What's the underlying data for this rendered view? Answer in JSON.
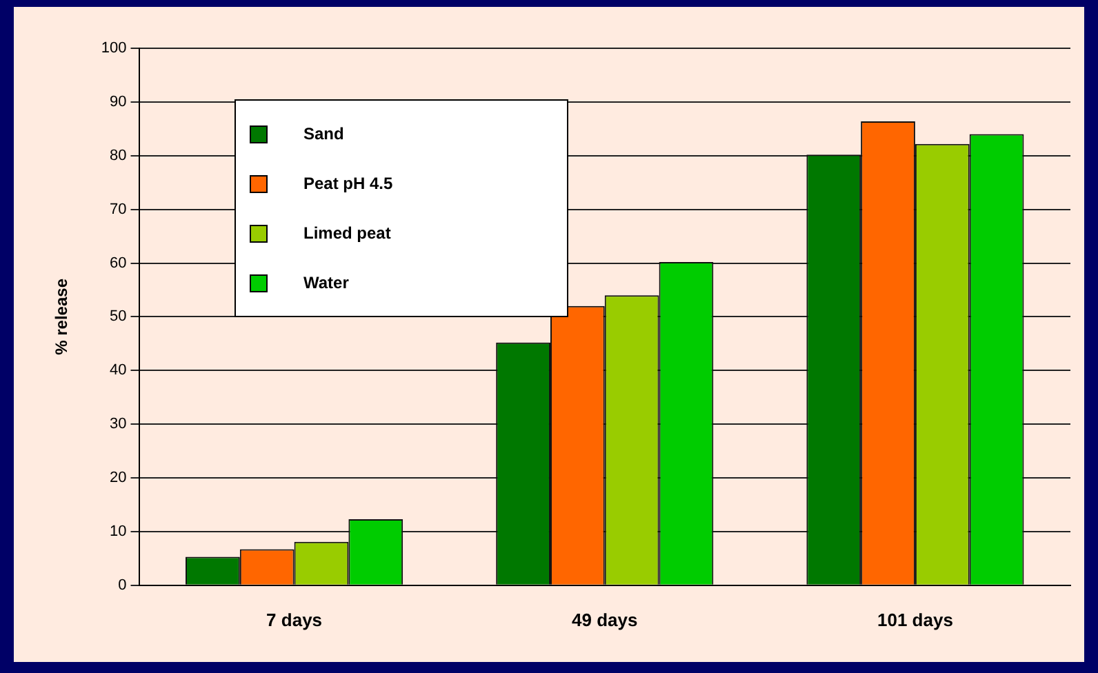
{
  "chart_data": {
    "type": "bar",
    "ylabel": "% release",
    "categories": [
      "7 days",
      "49 days",
      "101 days"
    ],
    "series": [
      {
        "name": "Sand",
        "color": "#007800",
        "values": [
          5.3,
          45.2,
          80.2
        ]
      },
      {
        "name": "Peat pH 4.5",
        "color": "#ff6600",
        "values": [
          6.7,
          52,
          86.4
        ]
      },
      {
        "name": "Limed peat",
        "color": "#99cc00",
        "values": [
          8.1,
          54,
          82.2
        ]
      },
      {
        "name": "Water",
        "color": "#00cc00",
        "values": [
          12.3,
          60.2,
          84
        ]
      }
    ],
    "ylim": [
      0,
      100
    ],
    "yticks": [
      0,
      10,
      20,
      30,
      40,
      50,
      60,
      70,
      80,
      90,
      100
    ],
    "grid": "y",
    "legend": "top left"
  }
}
